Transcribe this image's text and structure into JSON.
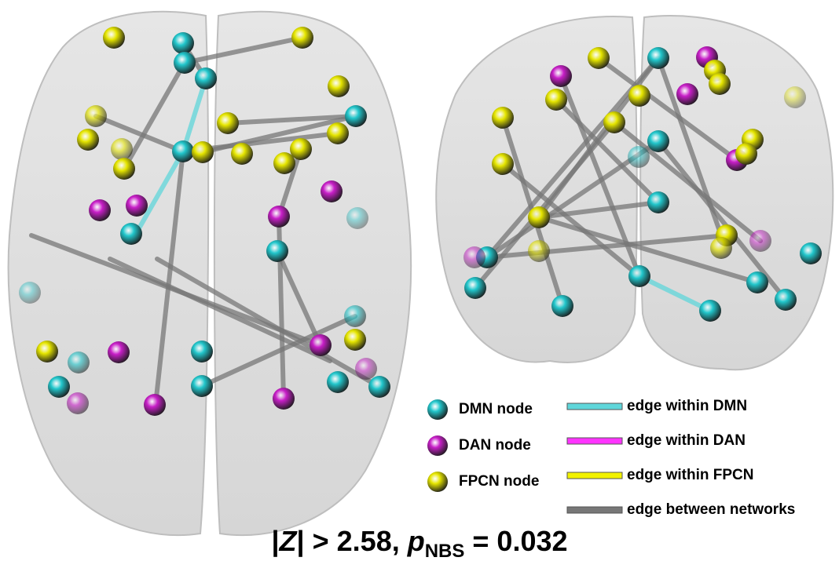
{
  "legend": {
    "nodes": [
      {
        "label": "DMN node",
        "color": "#22c7cc"
      },
      {
        "label": "DAN node",
        "color": "#c81fc8"
      },
      {
        "label": "FPCN node",
        "color": "#e6e600"
      }
    ],
    "edges": [
      {
        "label": "edge within DMN",
        "color": "#5fd6da"
      },
      {
        "label": "edge within DAN",
        "color": "#ff33ff"
      },
      {
        "label": "edge within FPCN",
        "color": "#f2f200"
      },
      {
        "label": "edge between networks",
        "color": "#777777"
      }
    ]
  },
  "caption": [
    "|",
    "Z",
    "| > 2.58, ",
    "p",
    "NBS",
    " = 0.032"
  ]
}
